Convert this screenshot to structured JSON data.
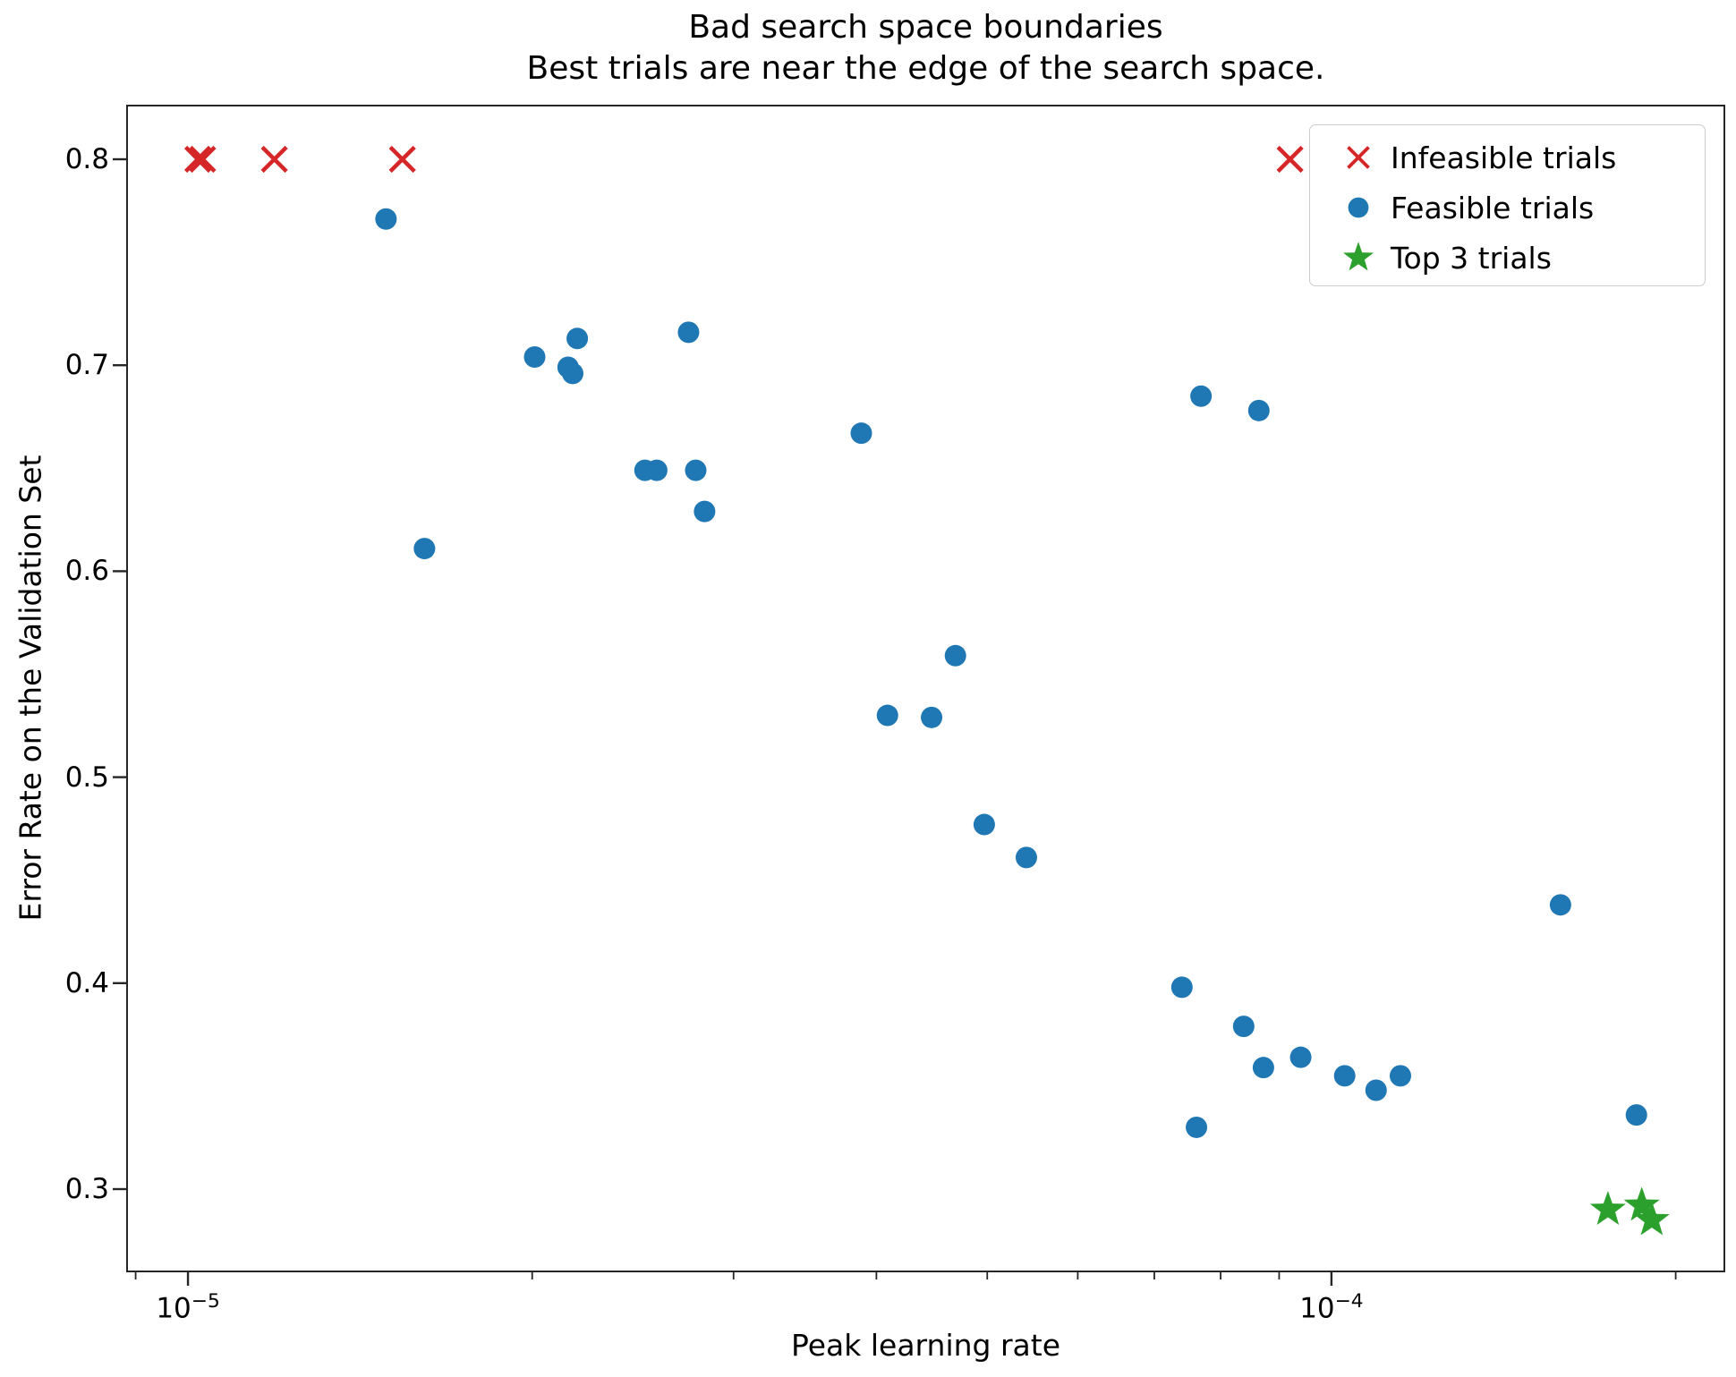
{
  "chart_data": {
    "type": "scatter",
    "title": "Bad search space boundaries",
    "subtitle": "Best trials are near the edge of the search space.",
    "xlabel": "Peak learning rate",
    "ylabel": "Error Rate on the Validation Set",
    "xscale": "log",
    "xlim": [
      8.83e-06,
      0.000221
    ],
    "ylim": [
      0.2596,
      0.8265
    ],
    "grid": false,
    "legend_position": "upper right",
    "x_major_ticks": [
      {
        "value": 1e-05,
        "base": "10",
        "exp": "−5"
      },
      {
        "value": 0.0001,
        "base": "10",
        "exp": "−4"
      }
    ],
    "x_minor_ticks": [
      9e-06,
      2e-05,
      3e-05,
      4e-05,
      5e-05,
      6e-05,
      7e-05,
      8e-05,
      9e-05,
      0.0002
    ],
    "y_ticks": [
      0.3,
      0.4,
      0.5,
      0.6,
      0.7,
      0.8
    ],
    "series": [
      {
        "name": "Infeasible trials",
        "marker": "x",
        "color": "#d62728",
        "points": [
          [
            1.02e-05,
            0.8
          ],
          [
            1.03e-05,
            0.8
          ],
          [
            1.19e-05,
            0.8
          ],
          [
            1.54e-05,
            0.8
          ],
          [
            9.2e-05,
            0.8
          ]
        ]
      },
      {
        "name": "Feasible trials",
        "marker": "circle",
        "color": "#1f77b4",
        "points": [
          [
            1.49e-05,
            0.771
          ],
          [
            2.01e-05,
            0.704
          ],
          [
            2.19e-05,
            0.713
          ],
          [
            2.15e-05,
            0.699
          ],
          [
            2.17e-05,
            0.696
          ],
          [
            2.74e-05,
            0.716
          ],
          [
            2.51e-05,
            0.649
          ],
          [
            2.57e-05,
            0.649
          ],
          [
            2.78e-05,
            0.649
          ],
          [
            2.83e-05,
            0.629
          ],
          [
            1.61e-05,
            0.611
          ],
          [
            3.88e-05,
            0.667
          ],
          [
            4.69e-05,
            0.559
          ],
          [
            4.09e-05,
            0.53
          ],
          [
            4.47e-05,
            0.529
          ],
          [
            4.97e-05,
            0.477
          ],
          [
            5.41e-05,
            0.461
          ],
          [
            7.69e-05,
            0.685
          ],
          [
            8.64e-05,
            0.678
          ],
          [
            7.4e-05,
            0.398
          ],
          [
            8.38e-05,
            0.379
          ],
          [
            8.72e-05,
            0.359
          ],
          [
            9.4e-05,
            0.364
          ],
          [
            0.0001027,
            0.355
          ],
          [
            0.0001094,
            0.348
          ],
          [
            0.0001149,
            0.355
          ],
          [
            7.62e-05,
            0.33
          ],
          [
            0.0001586,
            0.438
          ],
          [
            0.0001848,
            0.336
          ]
        ]
      },
      {
        "name": "Top 3 trials",
        "marker": "star",
        "color": "#2ca02c",
        "points": [
          [
            0.0001745,
            0.29
          ],
          [
            0.0001868,
            0.292
          ],
          [
            0.0001906,
            0.285
          ]
        ]
      }
    ]
  }
}
